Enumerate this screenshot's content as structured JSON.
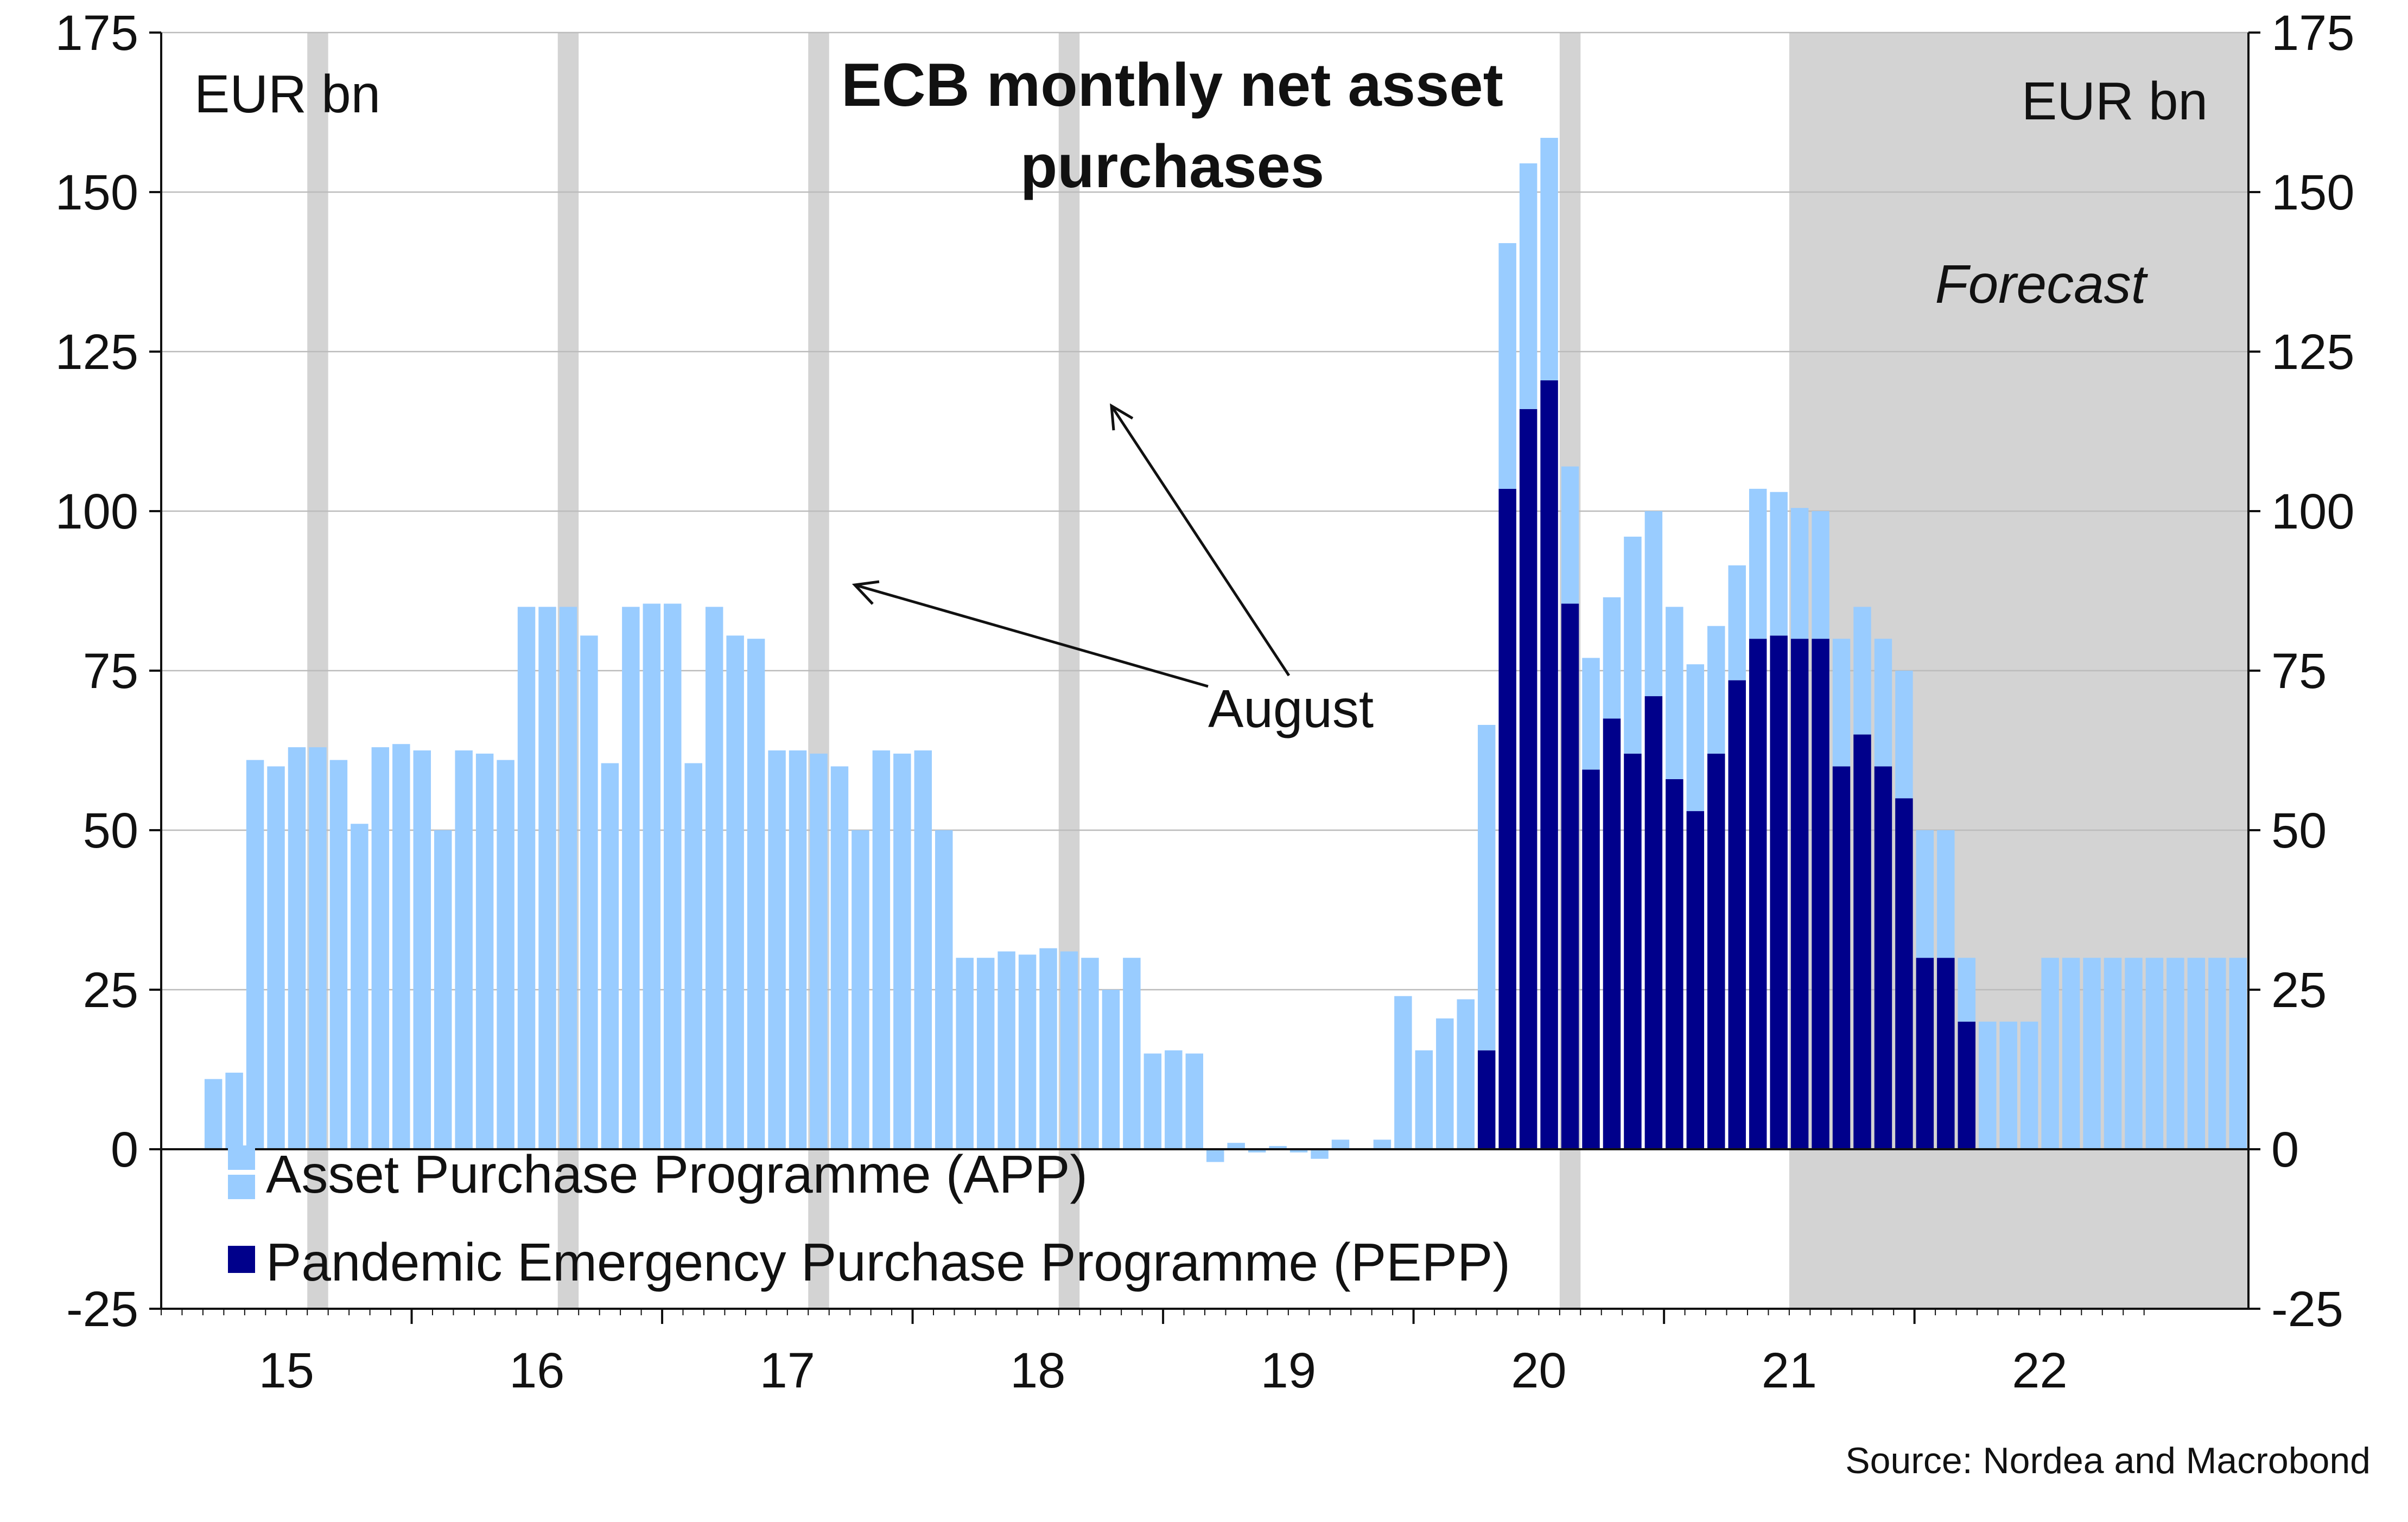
{
  "chart_data": {
    "type": "bar",
    "stacked": true,
    "title": "ECB monthly net asset purchases",
    "unit_left": "EUR bn",
    "unit_right": "EUR bn",
    "ylim": [
      -25,
      175
    ],
    "yticks": [
      -25,
      0,
      25,
      50,
      75,
      100,
      125,
      150,
      175
    ],
    "ytick_labels": [
      "-25",
      "0",
      "25",
      "50",
      "75",
      "100",
      "125",
      "150",
      "175"
    ],
    "start_year": 2015,
    "start_month": 3,
    "x_tick_labels": [
      "15",
      "16",
      "17",
      "18",
      "19",
      "20",
      "21",
      "22"
    ],
    "grid": true,
    "forecast_label": "Forecast",
    "forecast_start": "2021-07",
    "annotation_text": "August",
    "highlight_months": [
      "2015-08",
      "2016-08",
      "2017-08",
      "2018-08",
      "2020-08"
    ],
    "source": "Source: Nordea and Macrobond",
    "legend_position": "bottom-left",
    "colors": {
      "app": "#99ccff",
      "pepp": "#00008b",
      "forecast_bg": "#d3d3d3",
      "highlight": "#d3d3d3",
      "grid": "#bbbbbb"
    },
    "series": [
      {
        "name": "Asset Purchase Programme (APP)",
        "values": [
          11,
          12,
          61,
          60,
          63,
          63,
          61,
          51,
          63,
          63.5,
          62.5,
          50,
          62.5,
          62,
          61,
          85,
          85,
          85,
          80.5,
          60.5,
          85,
          85.5,
          85.5,
          60.5,
          85,
          80.5,
          80,
          62.5,
          62.5,
          62,
          60,
          50,
          62.5,
          62,
          62.5,
          50,
          30,
          30,
          31,
          30.5,
          31.5,
          31,
          30,
          25,
          30,
          15,
          15.5,
          15,
          -2,
          1,
          -0.5,
          0.5,
          -0.5,
          -1.5,
          1.5,
          0,
          1.5,
          24,
          15.5,
          20.5,
          23.5,
          51,
          38.5,
          38.5,
          38,
          21.5,
          17.5,
          19,
          34,
          29,
          27,
          23,
          20,
          18,
          23.5,
          22.5,
          20.5,
          20,
          20,
          20,
          20,
          20,
          20,
          20,
          10,
          20,
          20,
          20,
          30,
          30,
          30,
          30,
          30,
          30,
          30,
          30,
          30,
          30
        ]
      },
      {
        "name": "Pandemic Emergency Purchase Programme (PEPP)",
        "values": [
          0,
          0,
          0,
          0,
          0,
          0,
          0,
          0,
          0,
          0,
          0,
          0,
          0,
          0,
          0,
          0,
          0,
          0,
          0,
          0,
          0,
          0,
          0,
          0,
          0,
          0,
          0,
          0,
          0,
          0,
          0,
          0,
          0,
          0,
          0,
          0,
          0,
          0,
          0,
          0,
          0,
          0,
          0,
          0,
          0,
          0,
          0,
          0,
          0,
          0,
          0,
          0,
          0,
          0,
          0,
          0,
          0,
          0,
          0,
          0,
          0,
          15.5,
          103.5,
          116,
          120.5,
          85.5,
          59.5,
          67.5,
          62,
          71,
          58,
          53,
          62,
          73.5,
          80,
          80.5,
          80,
          80,
          60,
          65,
          60,
          55,
          30,
          30,
          20,
          0,
          0,
          0,
          0,
          0,
          0,
          0,
          0,
          0,
          0,
          0,
          0,
          0,
          0,
          0
        ]
      }
    ]
  }
}
